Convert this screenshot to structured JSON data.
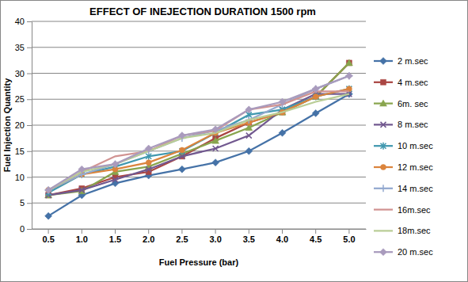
{
  "chart_data": {
    "type": "line",
    "title": "EFFECT OF INEJECTION DURATION 1500 rpm",
    "x_label": "Fuel Pressure (bar)",
    "y_label": "Fuel Injection Quantity",
    "categories": [
      "0.5",
      "1.0",
      "1.5",
      "2.0",
      "2.5",
      "3.0",
      "3.5",
      "4.0",
      "4.5",
      "5.0"
    ],
    "ylim": [
      0,
      40
    ],
    "yticks": [
      0,
      5,
      10,
      15,
      20,
      25,
      30,
      35,
      40
    ],
    "grid": true,
    "legend": "right",
    "series": [
      {
        "name": "2 m.sec",
        "color": "#4572a7",
        "marker": "diamond",
        "values": [
          2.5,
          6.5,
          8.8,
          10.3,
          11.5,
          12.8,
          15,
          18.5,
          22.3,
          26
        ]
      },
      {
        "name": "4 m.sec",
        "color": "#aa4643",
        "marker": "square",
        "values": [
          6.5,
          7.8,
          10,
          11,
          14,
          17.5,
          20.5,
          22.5,
          25.5,
          32
        ]
      },
      {
        "name": "6m. sec",
        "color": "#89a54e",
        "marker": "triangle",
        "values": [
          6.5,
          7.3,
          11,
          12,
          14.5,
          17,
          19.5,
          22.5,
          25.5,
          32
        ]
      },
      {
        "name": "8 m.sec",
        "color": "#71588f",
        "marker": "x",
        "values": [
          6.5,
          7.5,
          9.5,
          11.5,
          14,
          15.5,
          18,
          23,
          26,
          26
        ]
      },
      {
        "name": "10 m.sec",
        "color": "#4198af",
        "marker": "asterisk",
        "values": [
          7,
          10.5,
          12,
          14,
          15,
          18.5,
          22,
          23,
          25.5,
          27
        ]
      },
      {
        "name": "12 m.sec",
        "color": "#db843d",
        "marker": "circle",
        "values": [
          7.5,
          10.5,
          11.5,
          12.8,
          15.2,
          18.5,
          20.5,
          22.5,
          25.5,
          27
        ]
      },
      {
        "name": "14 m.sec",
        "color": "#93a9cf",
        "marker": "plus",
        "values": [
          7.5,
          10.5,
          12.5,
          15,
          17.5,
          19,
          21,
          24,
          27,
          29.5
        ]
      },
      {
        "name": "16m.sec",
        "color": "#d19392",
        "marker": "none",
        "values": [
          7.5,
          11,
          14,
          15,
          18,
          19,
          23,
          24,
          26.5,
          26.5
        ]
      },
      {
        "name": "18m.sec",
        "color": "#b9cd96",
        "marker": "none",
        "values": [
          7.5,
          11,
          12.5,
          15,
          17.5,
          18.5,
          21,
          22.5,
          24.5,
          26
        ]
      },
      {
        "name": "20 m.sec",
        "color": "#a99bbd",
        "marker": "diamond",
        "values": [
          7.5,
          11.5,
          12.5,
          15.5,
          18,
          19.2,
          23,
          24.5,
          27,
          29.5
        ]
      }
    ]
  }
}
